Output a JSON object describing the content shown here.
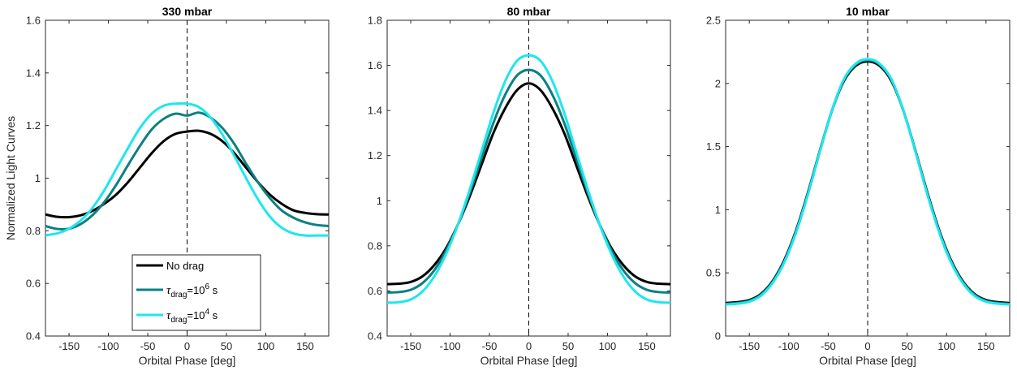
{
  "chart_data": [
    {
      "type": "line",
      "title": "330 mbar",
      "xlabel": "Orbital Phase [deg]",
      "ylabel": "Normalized Light Curves",
      "xlim": [
        -180,
        180
      ],
      "ylim": [
        0.4,
        1.6
      ],
      "xticks": [
        "-150",
        "-100",
        "-50",
        "0",
        "50",
        "100",
        "150"
      ],
      "yticks": [
        "0.4",
        "0.6",
        "0.8",
        "1",
        "1.2",
        "1.4",
        "1.6"
      ],
      "vline_x": 0,
      "grid": false,
      "legend": {
        "placement": "bottom-left",
        "entries": [
          {
            "label": "No drag",
            "series": 0
          },
          {
            "tau": "τ",
            "sub": "drag",
            "mid": "=10",
            "sup": "6",
            "end": " s",
            "series": 1
          },
          {
            "tau": "τ",
            "sub": "drag",
            "mid": "=10",
            "sup": "4",
            "end": " s",
            "series": 2
          }
        ]
      },
      "series": [
        {
          "color": "#000000",
          "x": [
            -180,
            -165,
            -150,
            -135,
            -120,
            -105,
            -90,
            -75,
            -60,
            -45,
            -30,
            -15,
            0,
            15,
            30,
            45,
            60,
            75,
            90,
            105,
            120,
            135,
            150,
            165,
            180
          ],
          "y": [
            0.862,
            0.853,
            0.852,
            0.859,
            0.876,
            0.903,
            0.938,
            0.985,
            1.04,
            1.095,
            1.14,
            1.168,
            1.177,
            1.18,
            1.168,
            1.14,
            1.095,
            1.04,
            0.985,
            0.938,
            0.903,
            0.878,
            0.868,
            0.863,
            0.862
          ]
        },
        {
          "color": "#0d8080",
          "x": [
            -180,
            -165,
            -150,
            -135,
            -120,
            -105,
            -90,
            -75,
            -60,
            -45,
            -30,
            -15,
            0,
            15,
            30,
            45,
            60,
            75,
            90,
            105,
            120,
            135,
            150,
            165,
            180
          ],
          "y": [
            0.818,
            0.807,
            0.808,
            0.826,
            0.86,
            0.91,
            0.975,
            1.05,
            1.122,
            1.185,
            1.225,
            1.245,
            1.238,
            1.249,
            1.23,
            1.19,
            1.13,
            1.055,
            0.985,
            0.925,
            0.878,
            0.85,
            0.832,
            0.822,
            0.818
          ]
        },
        {
          "color": "#1ee6ee",
          "x": [
            -180,
            -165,
            -150,
            -135,
            -120,
            -105,
            -90,
            -75,
            -60,
            -45,
            -30,
            -15,
            0,
            15,
            30,
            45,
            60,
            75,
            90,
            105,
            120,
            135,
            150,
            165,
            180
          ],
          "y": [
            0.783,
            0.79,
            0.808,
            0.84,
            0.888,
            0.955,
            1.035,
            1.115,
            1.19,
            1.245,
            1.275,
            1.283,
            1.283,
            1.27,
            1.23,
            1.165,
            1.085,
            1.0,
            0.92,
            0.855,
            0.812,
            0.79,
            0.782,
            0.782,
            0.782
          ]
        }
      ]
    },
    {
      "type": "line",
      "title": "80 mbar",
      "xlabel": "Orbital Phase [deg]",
      "ylabel": "",
      "xlim": [
        -180,
        180
      ],
      "ylim": [
        0.4,
        1.8
      ],
      "xticks": [
        "-150",
        "-100",
        "-50",
        "0",
        "50",
        "100",
        "150"
      ],
      "yticks": [
        "0.4",
        "0.6",
        "0.8",
        "1",
        "1.2",
        "1.4",
        "1.6",
        "1.8"
      ],
      "vline_x": 0,
      "grid": false,
      "series": [
        {
          "color": "#000000",
          "x": [
            -180,
            -165,
            -150,
            -135,
            -120,
            -105,
            -90,
            -75,
            -60,
            -45,
            -30,
            -15,
            0,
            15,
            30,
            45,
            60,
            75,
            90,
            105,
            120,
            135,
            150,
            165,
            180
          ],
          "y": [
            0.63,
            0.632,
            0.64,
            0.665,
            0.715,
            0.79,
            0.895,
            1.02,
            1.16,
            1.3,
            1.41,
            1.49,
            1.52,
            1.49,
            1.41,
            1.3,
            1.16,
            1.02,
            0.895,
            0.79,
            0.715,
            0.665,
            0.64,
            0.632,
            0.63
          ]
        },
        {
          "color": "#0d8080",
          "x": [
            -180,
            -165,
            -150,
            -135,
            -120,
            -105,
            -90,
            -75,
            -60,
            -45,
            -30,
            -15,
            0,
            15,
            30,
            45,
            60,
            75,
            90,
            105,
            120,
            135,
            150,
            165,
            180
          ],
          "y": [
            0.593,
            0.595,
            0.605,
            0.635,
            0.692,
            0.78,
            0.895,
            1.035,
            1.19,
            1.345,
            1.47,
            1.555,
            1.58,
            1.555,
            1.47,
            1.345,
            1.19,
            1.035,
            0.895,
            0.78,
            0.692,
            0.635,
            0.605,
            0.595,
            0.593
          ]
        },
        {
          "color": "#1ee6ee",
          "x": [
            -180,
            -165,
            -150,
            -135,
            -120,
            -105,
            -90,
            -75,
            -60,
            -45,
            -30,
            -15,
            0,
            15,
            30,
            45,
            60,
            75,
            90,
            105,
            120,
            135,
            150,
            165,
            180
          ],
          "y": [
            0.548,
            0.55,
            0.562,
            0.598,
            0.665,
            0.765,
            0.895,
            1.05,
            1.22,
            1.39,
            1.53,
            1.62,
            1.645,
            1.62,
            1.53,
            1.39,
            1.22,
            1.05,
            0.895,
            0.765,
            0.665,
            0.598,
            0.562,
            0.55,
            0.548
          ]
        }
      ]
    },
    {
      "type": "line",
      "title": "10 mbar",
      "xlabel": "Orbital Phase [deg]",
      "ylabel": "",
      "xlim": [
        -180,
        180
      ],
      "ylim": [
        0,
        2.5
      ],
      "xticks": [
        "-150",
        "-100",
        "-50",
        "0",
        "50",
        "100",
        "150"
      ],
      "yticks": [
        "0",
        "0.5",
        "1",
        "1.5",
        "2",
        "2.5"
      ],
      "vline_x": 0,
      "grid": false,
      "series": [
        {
          "color": "#000000",
          "x": [
            -180,
            -165,
            -150,
            -135,
            -120,
            -105,
            -90,
            -75,
            -60,
            -45,
            -30,
            -15,
            0,
            15,
            30,
            45,
            60,
            75,
            90,
            105,
            120,
            135,
            150,
            165,
            180
          ],
          "y": [
            0.262,
            0.268,
            0.285,
            0.335,
            0.44,
            0.61,
            0.85,
            1.15,
            1.48,
            1.79,
            2.02,
            2.14,
            2.175,
            2.14,
            2.02,
            1.79,
            1.48,
            1.15,
            0.85,
            0.61,
            0.44,
            0.335,
            0.285,
            0.268,
            0.262
          ]
        },
        {
          "color": "#0d8080",
          "x": [
            -180,
            -165,
            -150,
            -135,
            -120,
            -105,
            -90,
            -75,
            -60,
            -45,
            -30,
            -15,
            0,
            15,
            30,
            45,
            60,
            75,
            90,
            105,
            120,
            135,
            150,
            165,
            180
          ],
          "y": [
            0.255,
            0.261,
            0.278,
            0.328,
            0.432,
            0.6,
            0.84,
            1.14,
            1.475,
            1.79,
            2.03,
            2.15,
            2.185,
            2.15,
            2.03,
            1.79,
            1.475,
            1.14,
            0.84,
            0.6,
            0.432,
            0.328,
            0.278,
            0.261,
            0.255
          ]
        },
        {
          "color": "#1ee6ee",
          "x": [
            -180,
            -165,
            -150,
            -135,
            -120,
            -105,
            -90,
            -75,
            -60,
            -45,
            -30,
            -15,
            0,
            15,
            30,
            45,
            60,
            75,
            90,
            105,
            120,
            135,
            150,
            165,
            180
          ],
          "y": [
            0.25,
            0.256,
            0.272,
            0.32,
            0.424,
            0.592,
            0.832,
            1.135,
            1.472,
            1.792,
            2.035,
            2.158,
            2.192,
            2.158,
            2.035,
            1.792,
            1.472,
            1.135,
            0.832,
            0.592,
            0.424,
            0.32,
            0.272,
            0.256,
            0.25
          ]
        }
      ]
    }
  ]
}
